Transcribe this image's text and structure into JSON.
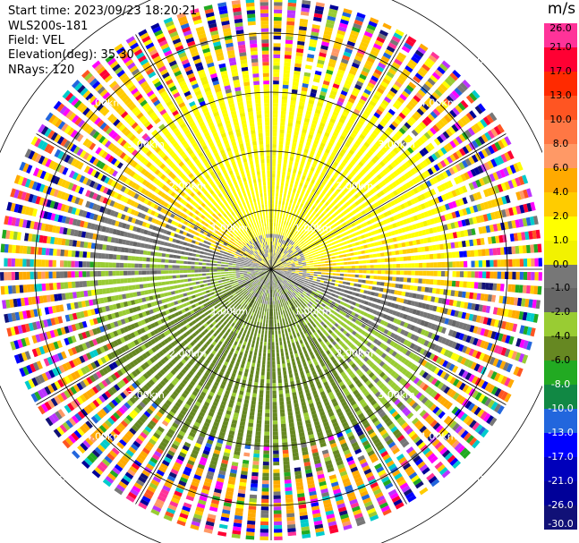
{
  "info": {
    "start_time": "Start time: 2023/09/23 18:20:21",
    "instrument": "WLS200s-181",
    "field": "Field: VEL",
    "elevation": "Elevation(deg): 35.30",
    "nrays": "NRays: 120"
  },
  "colorbar": {
    "unit": "m/s",
    "labels": [
      "26.0",
      "21.0",
      "17.0",
      "13.0",
      "10.0",
      "8.0",
      "6.0",
      "4.0",
      "2.0",
      "1.0",
      "0.0",
      "-1.0",
      "-2.0",
      "-4.0",
      "-6.0",
      "-8.0",
      "-10.0",
      "-13.0",
      "-17.0",
      "-21.0",
      "-26.0",
      "-30.0"
    ],
    "colors": [
      "#ff3399",
      "#ff0033",
      "#ff2a00",
      "#ff5522",
      "#ff7744",
      "#ff9966",
      "#ffaa00",
      "#ffcc00",
      "#ffff00",
      "#f2f200",
      "#777777",
      "#666666",
      "#99cc33",
      "#668822",
      "#22aa22",
      "#118844",
      "#2266dd",
      "#0000ff",
      "#0000bb",
      "#000099",
      "#111177"
    ]
  },
  "chart_data": {
    "type": "ppi",
    "field": "VEL",
    "units": "m/s",
    "nrays": 120,
    "ring_labels": [
      "1.00km",
      "2.00km",
      "3.00km",
      "4.00km",
      "5.00km"
    ],
    "ranges_km": [
      1.0,
      2.0,
      3.0,
      4.0,
      5.0
    ],
    "vmin": -30.0,
    "vmax": 26.0
  }
}
